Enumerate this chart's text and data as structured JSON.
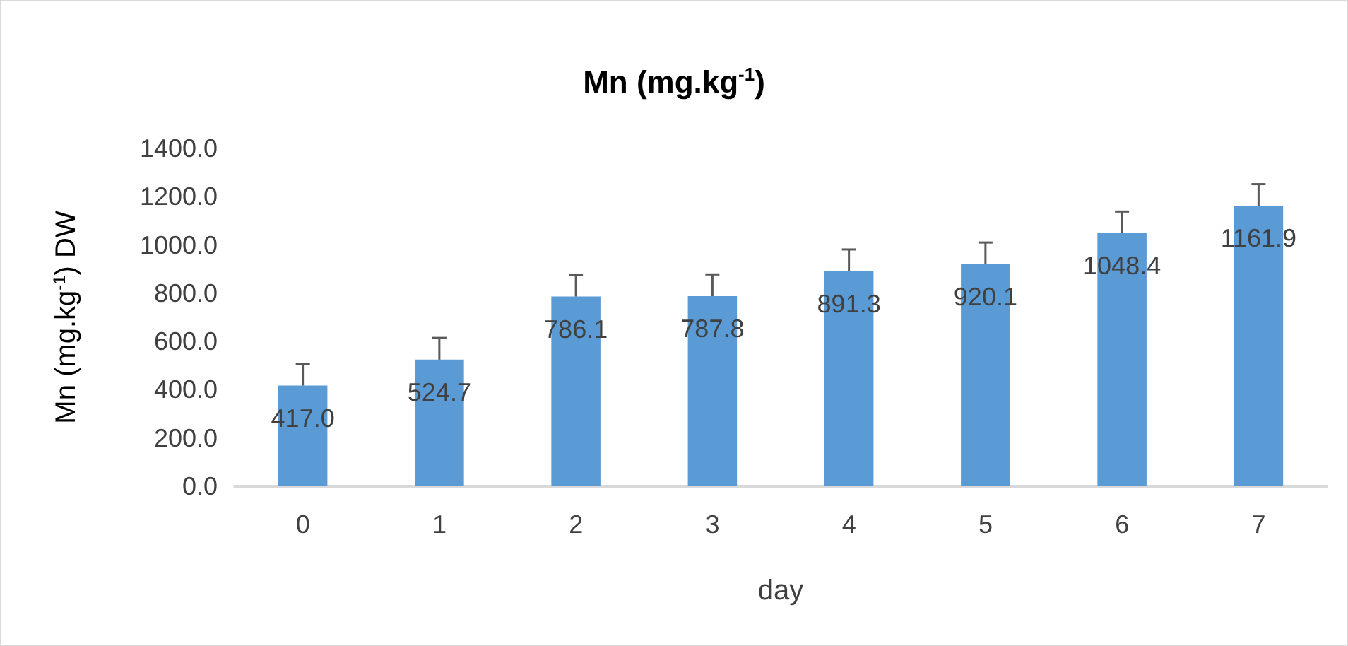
{
  "chart_data": {
    "type": "bar",
    "title": "Mn (mg.kg$^{-1}$)",
    "xlabel": "day",
    "ylabel": "Mn (mg.kg$^{-1}$) DW",
    "categories": [
      "0",
      "1",
      "2",
      "3",
      "4",
      "5",
      "6",
      "7"
    ],
    "values": [
      417.0,
      524.7,
      786.1,
      787.8,
      891.3,
      920.1,
      1048.4,
      1161.9
    ],
    "value_labels": [
      "417.0",
      "524.7",
      "786.1",
      "787.8",
      "891.3",
      "920.1",
      "1048.4",
      "1161.9"
    ],
    "errors": [
      90,
      90,
      90,
      90,
      90,
      90,
      90,
      90
    ],
    "color": "#5b9bd5",
    "ylim": [
      0,
      1400
    ],
    "yticks": [
      {
        "value": 0,
        "label": "0.0"
      },
      {
        "value": 200,
        "label": "200.0"
      },
      {
        "value": 400,
        "label": "400.0"
      },
      {
        "value": 600,
        "label": "600.0"
      },
      {
        "value": 800,
        "label": "800.0"
      },
      {
        "value": 1000,
        "label": "1000.0"
      },
      {
        "value": 1200,
        "label": "1200.0"
      },
      {
        "value": 1400,
        "label": "1400.0"
      }
    ],
    "grid": false
  }
}
